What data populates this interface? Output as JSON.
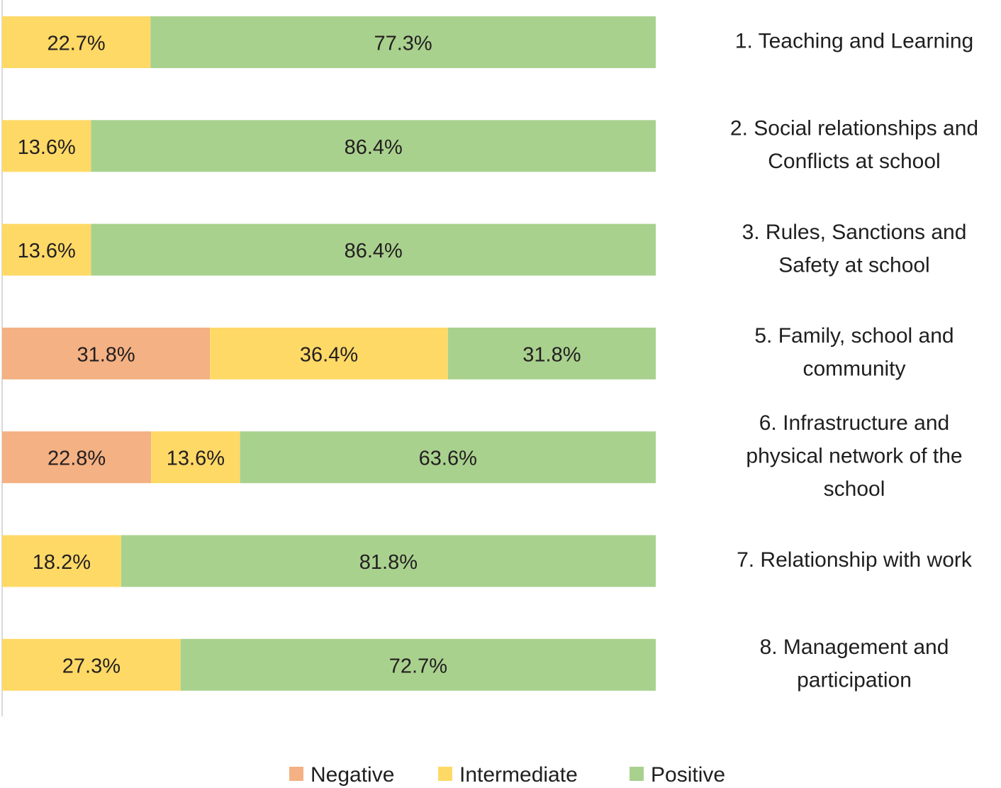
{
  "chart_data": {
    "type": "bar",
    "orientation": "horizontal",
    "stacked": true,
    "normalized_percent": true,
    "title": "",
    "xlabel": "",
    "ylabel": "",
    "xlim": [
      0,
      100
    ],
    "grid": false,
    "legend_position": "bottom",
    "categories": [
      "1. Teaching and Learning",
      "2. Social relationships and Conflicts at school",
      "3. Rules, Sanctions and Safety at school",
      "5. Family, school and community",
      "6. Infrastructure and physical network of the school",
      "7. Relationship with work",
      "8. Management and participation"
    ],
    "category_label_lines": [
      [
        "1. Teaching and Learning"
      ],
      [
        "2. Social relationships and",
        "Conflicts at school"
      ],
      [
        "3. Rules, Sanctions and",
        "Safety at school"
      ],
      [
        "5. Family, school and",
        "community"
      ],
      [
        "6. Infrastructure and",
        "physical network of the",
        "school"
      ],
      [
        "7. Relationship with work"
      ],
      [
        "8. Management and",
        "participation"
      ]
    ],
    "series": [
      {
        "name": "Negative",
        "color": "#F4B183",
        "values": [
          0,
          0,
          0,
          31.8,
          22.8,
          0,
          0
        ]
      },
      {
        "name": "Intermediate",
        "color": "#FFD966",
        "values": [
          22.7,
          13.6,
          13.6,
          36.4,
          13.6,
          18.2,
          27.3
        ]
      },
      {
        "name": "Positive",
        "color": "#A9D18E",
        "values": [
          77.3,
          86.4,
          86.4,
          31.8,
          63.6,
          81.8,
          72.7
        ]
      }
    ],
    "value_label_format": "{v}%"
  }
}
